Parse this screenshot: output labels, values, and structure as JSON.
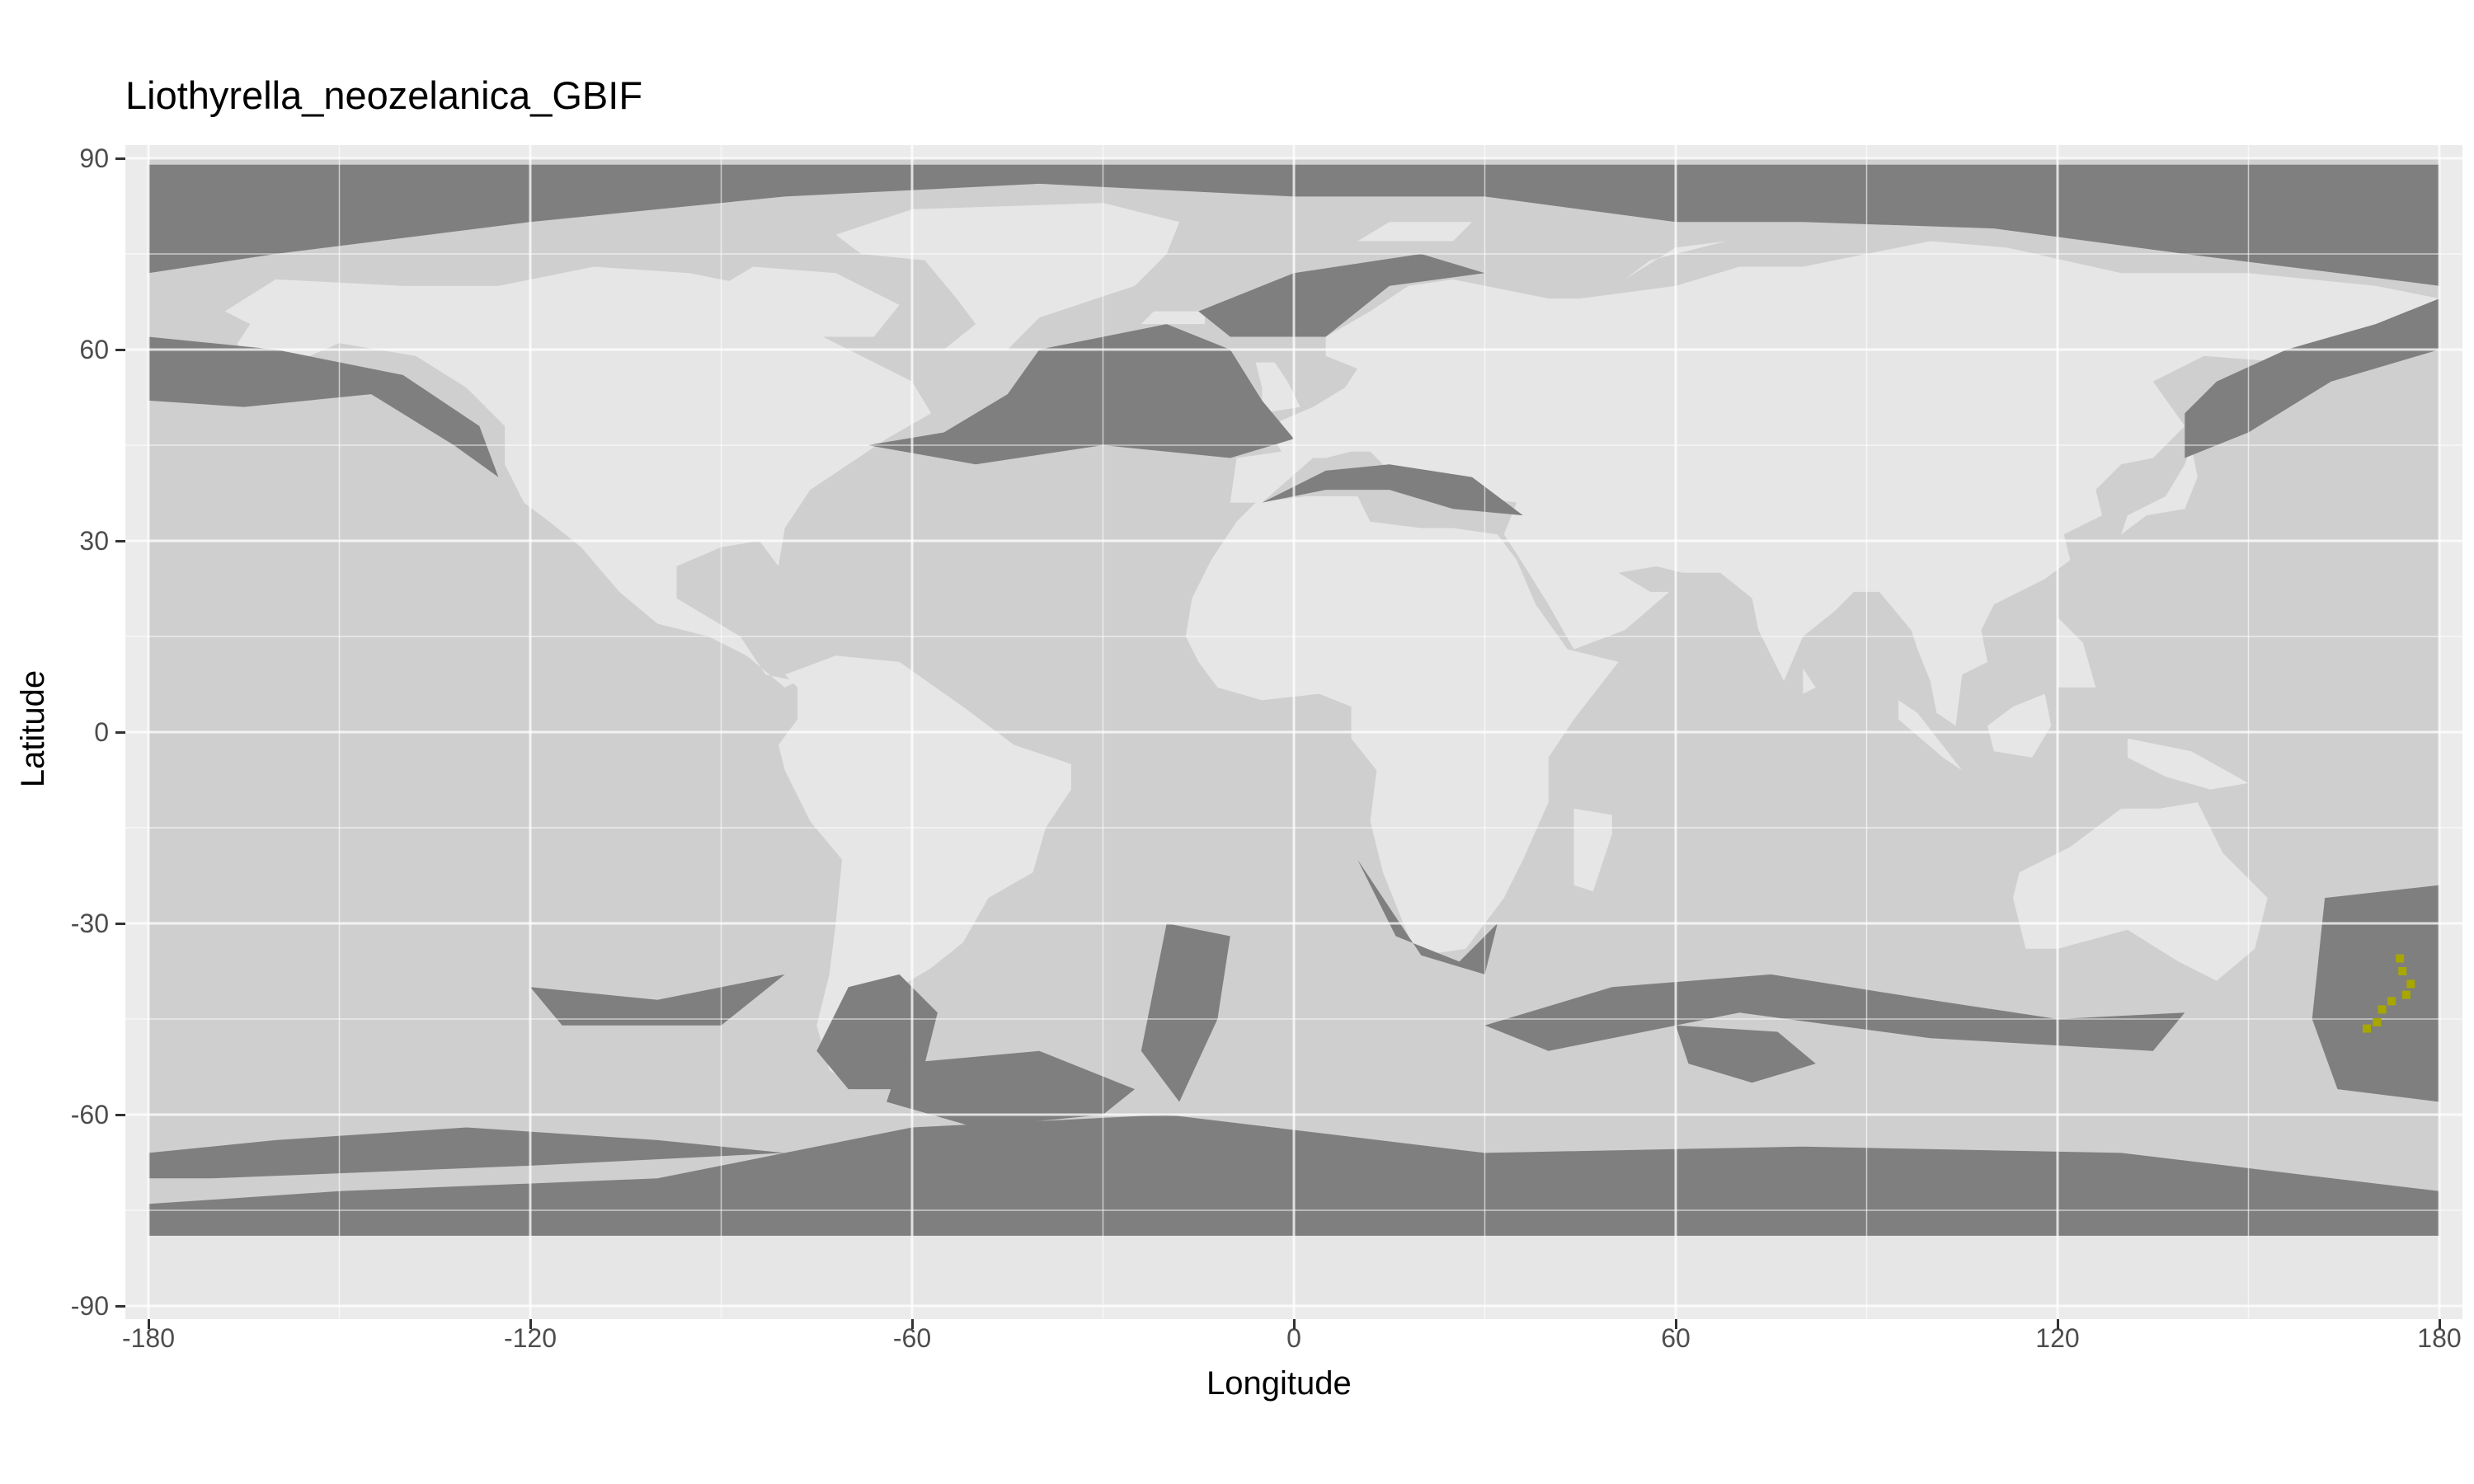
{
  "title": "Liothyrella_neozelanica_GBIF",
  "chart_data": {
    "type": "map",
    "title": "Liothyrella_neozelanica_GBIF",
    "xlabel": "Longitude",
    "ylabel": "Latitude",
    "xlim": [
      -180,
      180
    ],
    "ylim": [
      -90,
      90
    ],
    "x_ticks": [
      "-180",
      "-120",
      "-60",
      "0",
      "60",
      "120",
      "180"
    ],
    "y_ticks": [
      "90",
      "60",
      "30",
      "0",
      "-30",
      "-60",
      "-90"
    ],
    "grid": true,
    "legend": "none",
    "layers": [
      {
        "role": "land",
        "color": "#e6e6e6"
      },
      {
        "role": "ocean",
        "color": "#cfcfcf"
      },
      {
        "role": "suitable habitat",
        "color": "#7f7f7f"
      },
      {
        "role": "occurrence records",
        "color": "#a7a700"
      }
    ],
    "occurrences": [
      {
        "lon": 173.8,
        "lat": -35.5
      },
      {
        "lon": 174.2,
        "lat": -37.5
      },
      {
        "lon": 175.5,
        "lat": -39.5
      },
      {
        "lon": 174.8,
        "lat": -41.2
      },
      {
        "lon": 172.5,
        "lat": -42.2
      },
      {
        "lon": 171.0,
        "lat": -43.5
      },
      {
        "lon": 170.2,
        "lat": -45.5
      },
      {
        "lon": 168.6,
        "lat": -46.5
      }
    ]
  },
  "colors": {
    "panel_bg": "#ebebeb",
    "grid_major": "#ffffff",
    "text": "#000000",
    "tick_text": "#4d4d4d"
  }
}
